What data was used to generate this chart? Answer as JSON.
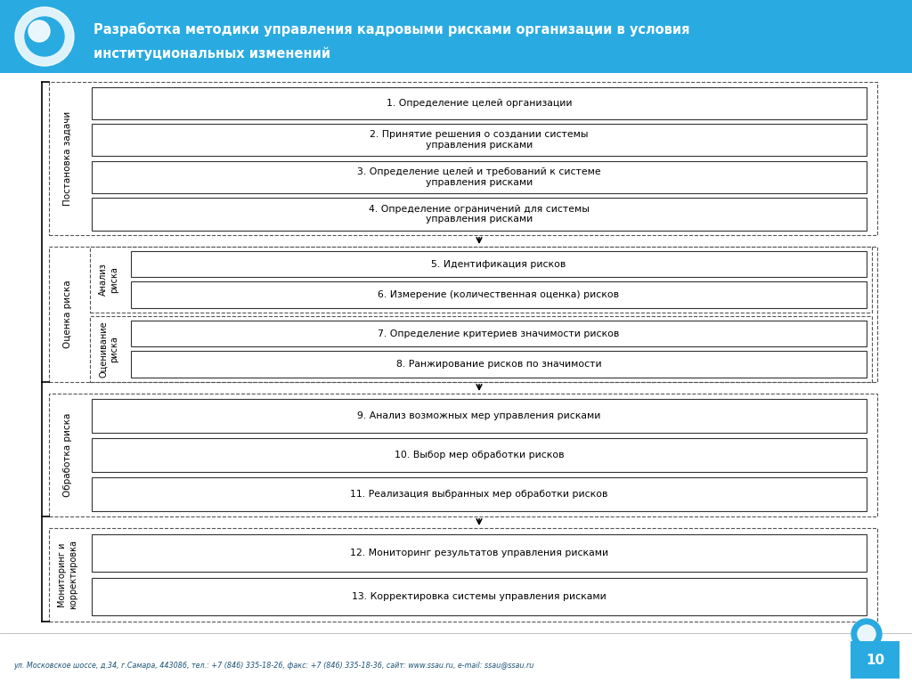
{
  "title_line1": "Разработка методики управления кадровыми рисками организации в условия",
  "title_line2": "институциональных изменений",
  "header_bg": "#29ABE2",
  "header_text_color": "#FFFFFF",
  "bg_color": "#FFFFFF",
  "footer_text": "ул. Московское шоссе, д.34, г.Самара, 443086, тел.: +7 (846) 335-18-26, факс: +7 (846) 335-18-36, сайт: www.ssau.ru, e-mail: ssau@ssau.ru",
  "page_number": "10",
  "groups": [
    {
      "label": "Постановка задачи",
      "outer_label": null,
      "items": [
        {
          "text": "1. Определение целей организации"
        },
        {
          "text": "2. Принятие решения о создании системы\nуправления рисками"
        },
        {
          "text": "3. Определение целей и требований к системе\nуправления рисками"
        },
        {
          "text": "4. Определение ограничений для системы\nуправления рисками"
        }
      ],
      "sub_groups": null
    },
    {
      "label": "Оценка риска",
      "outer_label": null,
      "items": null,
      "sub_groups": [
        {
          "label": "Анализ\nриска",
          "items": [
            {
              "text": "5. Идентификация рисков"
            },
            {
              "text": "6. Измерение (количественная оценка) рисков"
            }
          ]
        },
        {
          "label": "Оценивание\nриска",
          "items": [
            {
              "text": "7. Определение критериев значимости рисков"
            },
            {
              "text": "8. Ранжирование рисков по значимости"
            }
          ]
        }
      ]
    },
    {
      "label": "Обработка риска",
      "outer_label": null,
      "items": [
        {
          "text": "9. Анализ возможных мер управления рисками"
        },
        {
          "text": "10. Выбор мер обработки рисков"
        },
        {
          "text": "11. Реализация выбранных мер обработки рисков"
        }
      ],
      "sub_groups": null
    },
    {
      "label": "Мониторинг и\nкорректировка",
      "outer_label": null,
      "items": [
        {
          "text": "12. Мониторинг результатов управления рисками"
        },
        {
          "text": "13. Корректировка системы управления рисками"
        }
      ],
      "sub_groups": null
    }
  ]
}
